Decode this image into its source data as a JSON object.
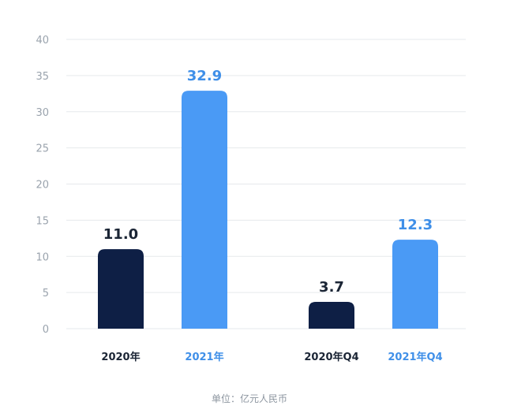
{
  "chart_data": {
    "type": "bar",
    "categories": [
      "2020年",
      "2021年",
      "2020年Q4",
      "2021年Q4"
    ],
    "values": [
      11.0,
      32.9,
      3.7,
      12.3
    ],
    "value_labels": [
      "11.0",
      "32.9",
      "3.7",
      "12.3"
    ],
    "ylim": [
      0,
      40
    ],
    "yticks": [
      0,
      5,
      10,
      15,
      20,
      25,
      30,
      35,
      40
    ],
    "grid": true,
    "title": "",
    "xlabel": "",
    "ylabel": "",
    "unit_note": "单位：亿元人民币"
  },
  "colors": {
    "dark_bar": "#0e1f45",
    "light_bar": "#4a9af5",
    "dark_text": "#1b2535",
    "light_text": "#3f8fe8",
    "grid": "#e6e9ec",
    "tick": "#9aa3ad"
  }
}
